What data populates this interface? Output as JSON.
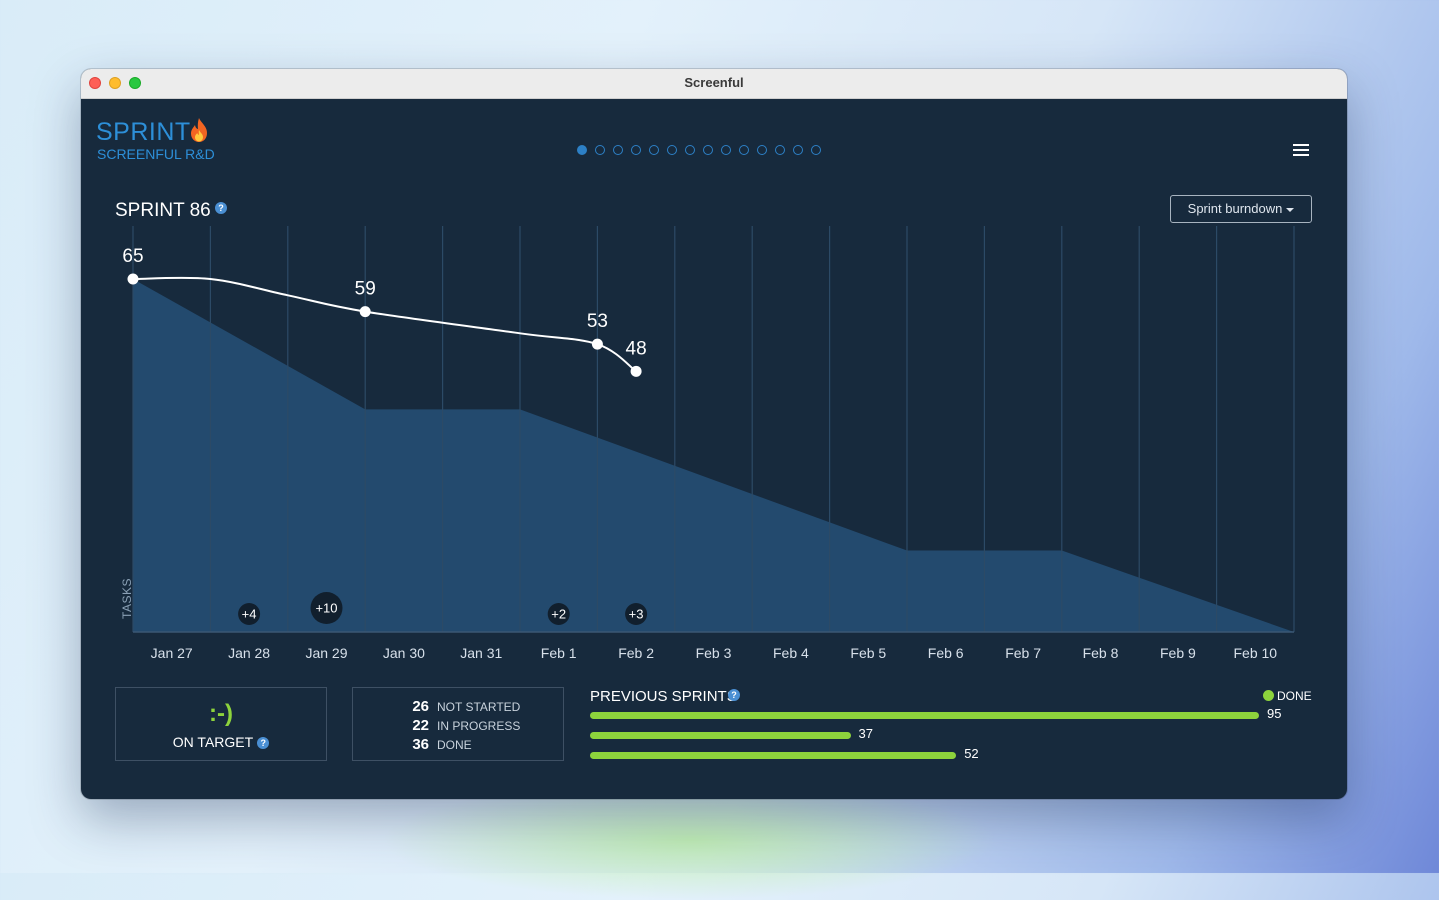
{
  "window": {
    "title": "Screenful"
  },
  "header": {
    "title": "SPRINT",
    "subtitle": "SCREENFUL R&D",
    "dots_total": 14,
    "dots_active": 0
  },
  "chart_header": {
    "title": "SPRINT 86",
    "view_select": "Sprint burndown"
  },
  "chart_data": {
    "type": "area",
    "title": "SPRINT 86",
    "ylabel": "TASKS",
    "ylim": [
      0,
      65
    ],
    "categories": [
      "Jan 27",
      "Jan 28",
      "Jan 29",
      "Jan 30",
      "Jan 31",
      "Feb 1",
      "Feb 2",
      "Feb 3",
      "Feb 4",
      "Feb 5",
      "Feb 6",
      "Feb 7",
      "Feb 8",
      "Feb 9",
      "Feb 10"
    ],
    "ideal_line": [
      {
        "x": 0.0,
        "y": 65
      },
      {
        "x": 3.0,
        "y": 41
      },
      {
        "x": 5.0,
        "y": 41
      },
      {
        "x": 10.0,
        "y": 15
      },
      {
        "x": 12.0,
        "y": 15
      },
      {
        "x": 15.0,
        "y": 0
      }
    ],
    "actual_line": [
      {
        "x": 0.0,
        "y": 65
      },
      {
        "x": 1.0,
        "y": 65
      },
      {
        "x": 2.0,
        "y": 62
      },
      {
        "x": 3.0,
        "y": 59
      },
      {
        "x": 5.0,
        "y": 55
      },
      {
        "x": 6.0,
        "y": 53
      },
      {
        "x": 6.5,
        "y": 48
      }
    ],
    "point_labels": [
      {
        "x": 0.0,
        "y": 65,
        "label": "65"
      },
      {
        "x": 3.0,
        "y": 59,
        "label": "59"
      },
      {
        "x": 6.0,
        "y": 53,
        "label": "53"
      },
      {
        "x": 6.5,
        "y": 48,
        "label": "48"
      }
    ],
    "scope_changes": [
      {
        "x": 1.5,
        "label": "+4"
      },
      {
        "x": 2.5,
        "label": "+10"
      },
      {
        "x": 5.5,
        "label": "+2"
      },
      {
        "x": 6.5,
        "label": "+3"
      }
    ],
    "grid": true
  },
  "status": {
    "face": ":-)",
    "label": "ON TARGET"
  },
  "counts": [
    {
      "value": "26",
      "label": "NOT STARTED"
    },
    {
      "value": "22",
      "label": "IN PROGRESS"
    },
    {
      "value": "36",
      "label": "DONE"
    }
  ],
  "previous_sprints": {
    "title": "PREVIOUS SPRINTS",
    "legend": "DONE",
    "max": 95,
    "bars": [
      {
        "value": 95
      },
      {
        "value": 37
      },
      {
        "value": 52
      }
    ]
  },
  "colors": {
    "background": "#172a3d",
    "area": "#234a6e",
    "grid": "#2c4a66",
    "accent": "#2d8fd8",
    "done": "#8dd33c"
  }
}
